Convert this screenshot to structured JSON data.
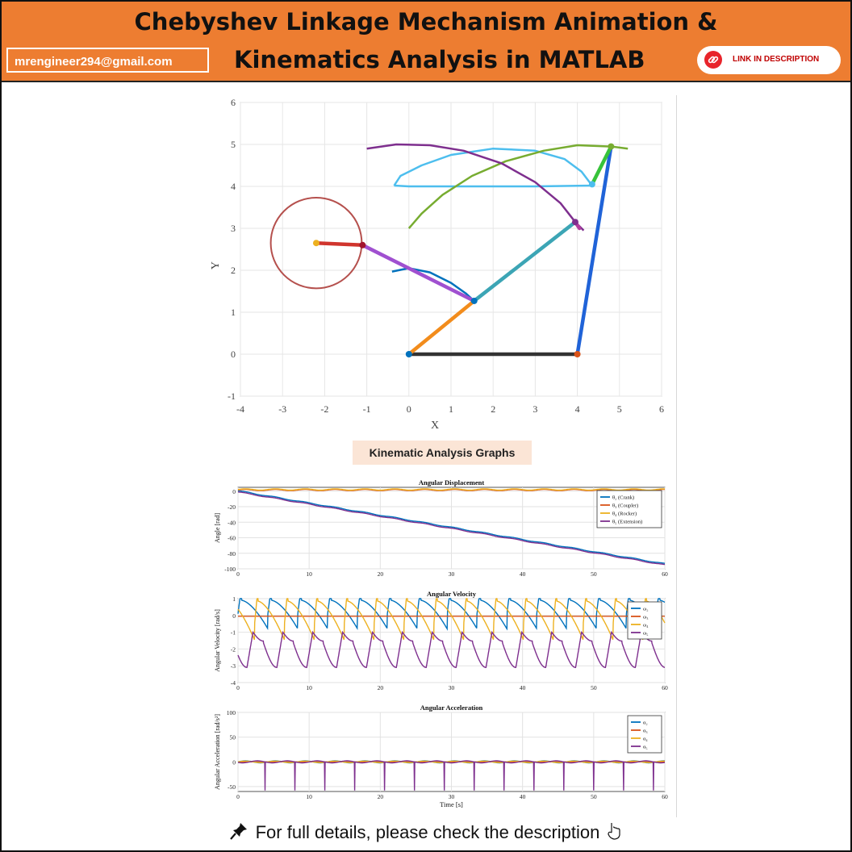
{
  "header": {
    "title_line1": "Chebyshev Linkage Mechanism Animation &",
    "title_line2": "Kinematics Analysis in MATLAB",
    "email": "mrengineer294@gmail.com",
    "link_label": "LINK IN DESCRIPTION"
  },
  "section_title": "Kinematic Analysis Graphs",
  "footer": {
    "text": "For full details, please check the description",
    "pin_icon": "pushpin-icon",
    "hand_icon": "pointing-down-icon"
  },
  "colors": {
    "header_bg": "#ed7d31",
    "crank": "#0072bd",
    "coupler": "#d95319",
    "rocker": "#edb120",
    "extension": "#7e2f8e"
  },
  "chart_data": [
    {
      "type": "line",
      "title": "",
      "xlabel": "X",
      "ylabel": "Y",
      "xlim": [
        -4,
        6
      ],
      "ylim": [
        -1,
        6
      ],
      "xticks": [
        -4,
        -3,
        -2,
        -1,
        0,
        1,
        2,
        3,
        4,
        5,
        6
      ],
      "yticks": [
        -1,
        0,
        1,
        2,
        3,
        4,
        5,
        6
      ],
      "grid": true,
      "links": [
        {
          "color": "#333333",
          "points": [
            [
              0,
              0
            ],
            [
              4,
              0
            ]
          ]
        },
        {
          "color": "#f28c1c",
          "points": [
            [
              0,
              0
            ],
            [
              1.55,
              1.27
            ]
          ]
        },
        {
          "color": "#3ca5b5",
          "points": [
            [
              1.55,
              1.27
            ],
            [
              3.95,
              3.15
            ]
          ]
        },
        {
          "color": "#2063d8",
          "points": [
            [
              4,
              0
            ],
            [
              4.8,
              4.95
            ]
          ]
        },
        {
          "color": "#37c33a",
          "points": [
            [
              4.35,
              4.05
            ],
            [
              4.8,
              4.95
            ]
          ]
        },
        {
          "color": "#b23d9e",
          "points": [
            [
              3.95,
              3.15
            ],
            [
              4.05,
              3.0
            ]
          ]
        },
        {
          "color": "#a050d0",
          "points": [
            [
              1.55,
              1.27
            ],
            [
              -1.1,
              2.6
            ]
          ]
        },
        {
          "color": "#d0352d",
          "points": [
            [
              -2.2,
              2.65
            ],
            [
              -1.1,
              2.6
            ]
          ]
        }
      ],
      "joints": [
        {
          "color": "#0072bd",
          "point": [
            0,
            0
          ]
        },
        {
          "color": "#d95319",
          "point": [
            4,
            0
          ]
        },
        {
          "color": "#0072bd",
          "point": [
            1.55,
            1.27
          ]
        },
        {
          "color": "#7e2f8e",
          "point": [
            3.95,
            3.15
          ]
        },
        {
          "color": "#77ac30",
          "point": [
            4.8,
            4.95
          ]
        },
        {
          "color": "#4dbeee",
          "point": [
            4.35,
            4.05
          ]
        },
        {
          "color": "#edb120",
          "point": [
            -2.2,
            2.65
          ]
        },
        {
          "color": "#a2142f",
          "point": [
            -1.1,
            2.6
          ]
        }
      ],
      "crank_circle": {
        "center": [
          -2.2,
          2.65
        ],
        "radius": 1.08,
        "color": "#b5504d"
      },
      "traces": [
        {
          "color": "#4dbeee",
          "points": [
            [
              -0.35,
              4.02
            ],
            [
              -0.2,
              4.25
            ],
            [
              0.3,
              4.5
            ],
            [
              1.0,
              4.75
            ],
            [
              2.0,
              4.9
            ],
            [
              3.0,
              4.85
            ],
            [
              3.7,
              4.65
            ],
            [
              4.1,
              4.35
            ],
            [
              4.35,
              4.02
            ],
            [
              3.0,
              4.0
            ],
            [
              1.5,
              4.0
            ],
            [
              0.0,
              4.0
            ],
            [
              -0.35,
              4.02
            ]
          ]
        },
        {
          "color": "#77ac30",
          "points": [
            [
              0.0,
              3.0
            ],
            [
              0.3,
              3.35
            ],
            [
              0.8,
              3.8
            ],
            [
              1.5,
              4.25
            ],
            [
              2.3,
              4.6
            ],
            [
              3.2,
              4.85
            ],
            [
              4.0,
              4.98
            ],
            [
              4.8,
              4.95
            ],
            [
              5.2,
              4.9
            ]
          ]
        },
        {
          "color": "#7e2f8e",
          "points": [
            [
              -1.0,
              4.9
            ],
            [
              -0.3,
              5.0
            ],
            [
              0.5,
              4.98
            ],
            [
              1.3,
              4.85
            ],
            [
              2.2,
              4.55
            ],
            [
              3.0,
              4.1
            ],
            [
              3.6,
              3.6
            ],
            [
              3.95,
              3.15
            ],
            [
              4.15,
              2.95
            ]
          ]
        },
        {
          "color": "#0072bd",
          "points": [
            [
              -0.4,
              1.97
            ],
            [
              0.0,
              2.05
            ],
            [
              0.5,
              1.95
            ],
            [
              1.0,
              1.7
            ],
            [
              1.35,
              1.45
            ],
            [
              1.55,
              1.27
            ]
          ]
        }
      ]
    },
    {
      "type": "line",
      "title": "Angular Displacement",
      "xlabel": "",
      "ylabel": "Angle [rad]",
      "xlim": [
        0,
        60
      ],
      "ylim": [
        -100,
        5
      ],
      "xticks": [
        0,
        10,
        20,
        30,
        40,
        50,
        60
      ],
      "yticks": [
        0,
        -20,
        -40,
        -60,
        -80,
        -100
      ],
      "legend": "top-right",
      "legend_entries": [
        "θ₂ (Crank)",
        "θ₃ (Coupler)",
        "θ₄ (Rocker)",
        "θ₅ (Extension)"
      ],
      "series": [
        {
          "name": "θ₂ (Crank)",
          "color": "#0072bd",
          "kind": "ramp",
          "start": 0.5,
          "end": -93.5,
          "ripple": 0.5
        },
        {
          "name": "θ₃ (Coupler)",
          "color": "#d95319",
          "kind": "wave",
          "base": 1.5,
          "amp": 0.8
        },
        {
          "name": "θ₄ (Rocker)",
          "color": "#edb120",
          "kind": "wave",
          "base": 2.2,
          "amp": 0.8
        },
        {
          "name": "θ₅ (Extension)",
          "color": "#7e2f8e",
          "kind": "ramp",
          "start": -1.0,
          "end": -95.0,
          "ripple": 0.5
        }
      ]
    },
    {
      "type": "line",
      "title": "Angular Velocity",
      "xlabel": "",
      "ylabel": "Angular Velocity [rad/s]",
      "xlim": [
        0,
        60
      ],
      "ylim": [
        -4,
        1
      ],
      "xticks": [
        0,
        10,
        20,
        30,
        40,
        50,
        60
      ],
      "yticks": [
        1,
        0,
        -1,
        -2,
        -3,
        -4
      ],
      "legend": "top-right",
      "legend_entries": [
        "ω₂",
        "ω₃",
        "ω₄",
        "ω₅"
      ],
      "period": 4.2,
      "series": [
        {
          "name": "ω₂",
          "color": "#0072bd",
          "kind": "saw",
          "high": 0.9,
          "low": -0.8
        },
        {
          "name": "ω₃",
          "color": "#d95319",
          "kind": "flat",
          "value": -0.05
        },
        {
          "name": "ω₄",
          "color": "#edb120",
          "kind": "saw",
          "high": 0.85,
          "low": -1.45,
          "phase": 0.45
        },
        {
          "name": "ω₅",
          "color": "#7e2f8e",
          "kind": "dip",
          "high": -1.0,
          "low": -3.1
        }
      ]
    },
    {
      "type": "line",
      "title": "Angular Acceleration",
      "xlabel": "Time [s]",
      "ylabel": "Angular Acceleration [rad/s²]",
      "xlim": [
        0,
        60
      ],
      "ylim": [
        -60,
        100
      ],
      "xticks": [
        0,
        10,
        20,
        30,
        40,
        50,
        60
      ],
      "yticks": [
        100,
        50,
        0,
        -50
      ],
      "legend": "top-right",
      "legend_entries": [
        "α₂",
        "α₃",
        "α₄",
        "α₅"
      ],
      "period": 4.2,
      "series": [
        {
          "name": "α₂",
          "color": "#0072bd",
          "kind": "bump",
          "amp": 2
        },
        {
          "name": "α₃",
          "color": "#d95319",
          "kind": "flat",
          "value": 0
        },
        {
          "name": "α₄",
          "color": "#edb120",
          "kind": "bump",
          "amp": 1.5
        },
        {
          "name": "α₅",
          "color": "#7e2f8e",
          "kind": "spike",
          "high": 70,
          "low": -58
        }
      ]
    }
  ]
}
